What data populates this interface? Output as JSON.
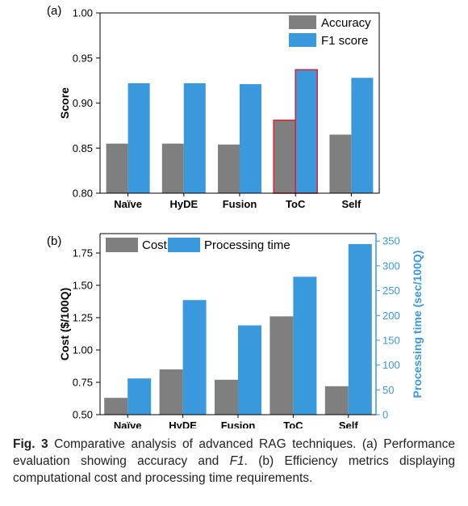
{
  "colors": {
    "accuracy": "#7f7f7f",
    "f1": "#3a98dc",
    "cost": "#7f7f7f",
    "time": "#3a98dc",
    "time_axis": "#3a98dc",
    "highlight_border": "#e0202a"
  },
  "chart_data": [
    {
      "panel": "(a)",
      "type": "bar",
      "categories": [
        "Naïve",
        "HyDE",
        "Fusion",
        "ToC",
        "Self"
      ],
      "series": [
        {
          "name": "Accuracy",
          "values": [
            0.855,
            0.855,
            0.854,
            0.881,
            0.865
          ]
        },
        {
          "name": "F1 score",
          "values": [
            0.922,
            0.922,
            0.921,
            0.937,
            0.928
          ]
        }
      ],
      "highlight_category": "ToC",
      "ylabel": "Score",
      "ylim": [
        0.8,
        1.0
      ],
      "yticks": [
        "0.80",
        "0.85",
        "0.90",
        "0.95",
        "1.00"
      ],
      "legend": "top-right",
      "grid": false
    },
    {
      "panel": "(b)",
      "type": "bar",
      "categories": [
        "Naïve",
        "HyDE",
        "Fusion",
        "ToC",
        "Self"
      ],
      "series": [
        {
          "name": "Cost",
          "axis": "left",
          "values": [
            0.63,
            0.85,
            0.77,
            1.26,
            0.72
          ]
        },
        {
          "name": "Processing time",
          "axis": "right",
          "values": [
            73,
            231,
            180,
            278,
            344
          ]
        }
      ],
      "ylabel": "Cost ($/100Q)",
      "ylim": [
        0.5,
        1.9
      ],
      "yticks": [
        "0.50",
        "0.75",
        "1.00",
        "1.25",
        "1.50",
        "1.75"
      ],
      "y2label": "Processing time (sec/100Q)",
      "y2lim": [
        0,
        365
      ],
      "y2ticks": [
        "0",
        "50",
        "100",
        "150",
        "200",
        "250",
        "300",
        "350"
      ],
      "legend": "top-left",
      "grid": false
    }
  ],
  "caption": {
    "fig_label": "Fig. 3",
    "text_before": " Comparative analysis of advanced RAG techniques. (a) Performance evaluation showing accuracy and ",
    "italic": "F1",
    "text_after": ". (b) Efficiency metrics displaying computational cost and processing time requirements."
  }
}
